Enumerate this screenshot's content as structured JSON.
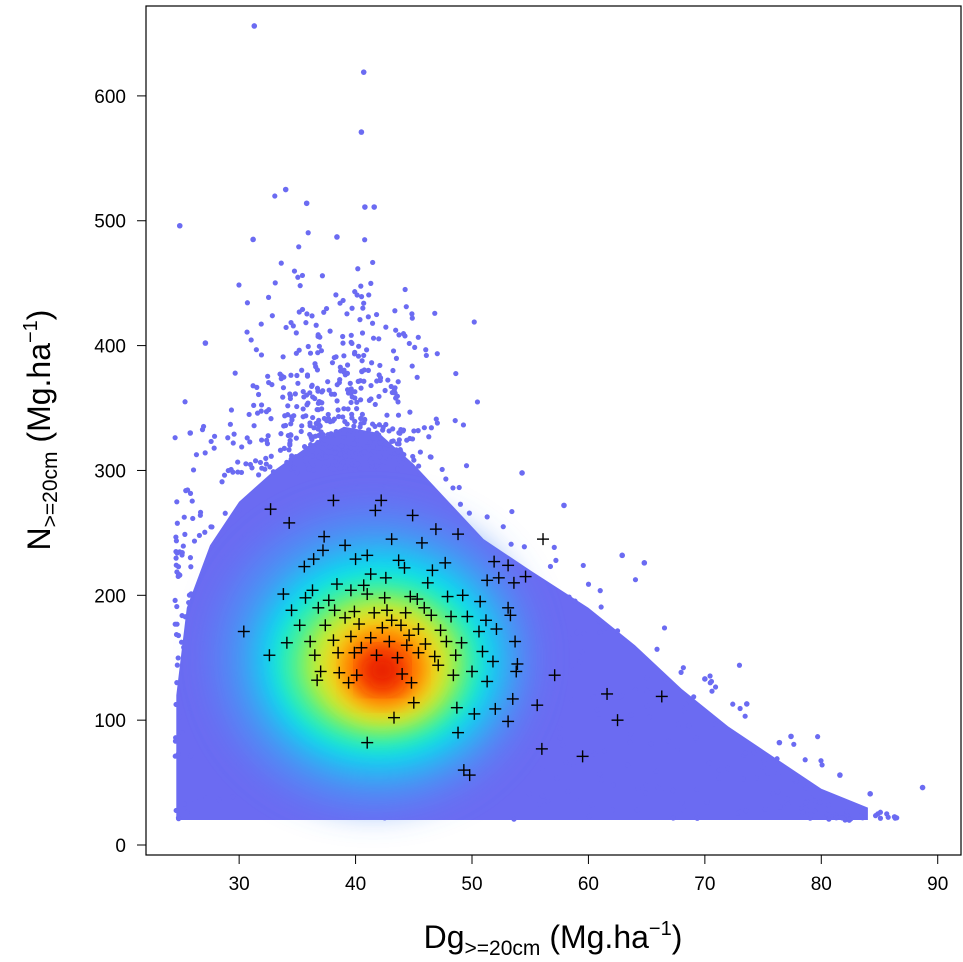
{
  "chart_data": {
    "type": "scatter",
    "title": "",
    "xlabel": {
      "main": "Dg",
      "subscript": ">=20cm",
      "unit_open": " (Mg.ha",
      "unit_exp": "−1",
      "unit_close": ")"
    },
    "ylabel": {
      "main": "N",
      "subscript": ">=20cm",
      "unit_open": " (Mg.ha",
      "unit_exp": "−1",
      "unit_close": ")"
    },
    "xlim": [
      22,
      92
    ],
    "ylim": [
      -8,
      672
    ],
    "x_ticks": [
      30,
      40,
      50,
      60,
      70,
      80,
      90
    ],
    "y_ticks": [
      0,
      100,
      200,
      300,
      400,
      500,
      600
    ],
    "grid": false,
    "legend": "none",
    "density_colors": [
      "#6b6bf2",
      "#4f8cf5",
      "#00e6f0",
      "#3cf0a0",
      "#a8f040",
      "#f0e020",
      "#ffa000",
      "#ff5a00",
      "#e81e00"
    ],
    "density_points": {
      "description_count": "simulated population, density-coloured",
      "highlight_outliers": [
        {
          "x": 31.3,
          "y": 656
        },
        {
          "x": 40.7,
          "y": 619
        },
        {
          "x": 40.5,
          "y": 571
        },
        {
          "x": 24.9,
          "y": 496
        },
        {
          "x": 31.2,
          "y": 485
        },
        {
          "x": 34.0,
          "y": 525
        },
        {
          "x": 35.8,
          "y": 514
        },
        {
          "x": 40.8,
          "y": 511
        },
        {
          "x": 41.6,
          "y": 511
        },
        {
          "x": 38.4,
          "y": 487
        },
        {
          "x": 27.1,
          "y": 402
        },
        {
          "x": 25.8,
          "y": 330
        },
        {
          "x": 88.7,
          "y": 46
        },
        {
          "x": 84.2,
          "y": 41
        },
        {
          "x": 82.4,
          "y": 20
        },
        {
          "x": 76.4,
          "y": 82
        },
        {
          "x": 77.4,
          "y": 87
        },
        {
          "x": 73.6,
          "y": 113
        },
        {
          "x": 70.0,
          "y": 133
        },
        {
          "x": 57.9,
          "y": 272
        },
        {
          "x": 54.3,
          "y": 298
        },
        {
          "x": 62.9,
          "y": 232
        },
        {
          "x": 64.8,
          "y": 226
        },
        {
          "x": 81.6,
          "y": 56
        }
      ]
    },
    "observed_points": [
      {
        "x": 32.7,
        "y": 269
      },
      {
        "x": 34.3,
        "y": 258
      },
      {
        "x": 38.1,
        "y": 276
      },
      {
        "x": 42.2,
        "y": 276
      },
      {
        "x": 41.7,
        "y": 268
      },
      {
        "x": 44.9,
        "y": 264
      },
      {
        "x": 46.9,
        "y": 253
      },
      {
        "x": 48.8,
        "y": 249
      },
      {
        "x": 56.1,
        "y": 245
      },
      {
        "x": 37.3,
        "y": 247
      },
      {
        "x": 39.1,
        "y": 240
      },
      {
        "x": 43.1,
        "y": 245
      },
      {
        "x": 45.7,
        "y": 242
      },
      {
        "x": 37.2,
        "y": 236
      },
      {
        "x": 41.0,
        "y": 232
      },
      {
        "x": 40.0,
        "y": 229
      },
      {
        "x": 43.7,
        "y": 228
      },
      {
        "x": 47.7,
        "y": 226
      },
      {
        "x": 51.9,
        "y": 227
      },
      {
        "x": 53.1,
        "y": 224
      },
      {
        "x": 35.6,
        "y": 223
      },
      {
        "x": 36.4,
        "y": 229
      },
      {
        "x": 44.2,
        "y": 222
      },
      {
        "x": 46.6,
        "y": 220
      },
      {
        "x": 41.3,
        "y": 217
      },
      {
        "x": 42.6,
        "y": 214
      },
      {
        "x": 52.3,
        "y": 214
      },
      {
        "x": 54.6,
        "y": 215
      },
      {
        "x": 51.3,
        "y": 212
      },
      {
        "x": 53.6,
        "y": 210
      },
      {
        "x": 38.4,
        "y": 209
      },
      {
        "x": 39.6,
        "y": 204
      },
      {
        "x": 36.3,
        "y": 204
      },
      {
        "x": 33.8,
        "y": 201
      },
      {
        "x": 35.7,
        "y": 198
      },
      {
        "x": 41.0,
        "y": 201
      },
      {
        "x": 44.7,
        "y": 199
      },
      {
        "x": 45.3,
        "y": 197
      },
      {
        "x": 47.9,
        "y": 199
      },
      {
        "x": 49.2,
        "y": 200
      },
      {
        "x": 50.7,
        "y": 195
      },
      {
        "x": 53.1,
        "y": 190
      },
      {
        "x": 30.4,
        "y": 171
      },
      {
        "x": 34.5,
        "y": 188
      },
      {
        "x": 36.8,
        "y": 190
      },
      {
        "x": 38.2,
        "y": 188
      },
      {
        "x": 39.9,
        "y": 187
      },
      {
        "x": 41.6,
        "y": 186
      },
      {
        "x": 42.7,
        "y": 188
      },
      {
        "x": 44.3,
        "y": 186
      },
      {
        "x": 46.5,
        "y": 184
      },
      {
        "x": 48.2,
        "y": 183
      },
      {
        "x": 49.6,
        "y": 183
      },
      {
        "x": 51.2,
        "y": 180
      },
      {
        "x": 53.3,
        "y": 184
      },
      {
        "x": 35.2,
        "y": 176
      },
      {
        "x": 37.4,
        "y": 176
      },
      {
        "x": 40.3,
        "y": 177
      },
      {
        "x": 42.3,
        "y": 174
      },
      {
        "x": 43.9,
        "y": 176
      },
      {
        "x": 45.4,
        "y": 173
      },
      {
        "x": 47.3,
        "y": 172
      },
      {
        "x": 50.6,
        "y": 171
      },
      {
        "x": 52.1,
        "y": 173
      },
      {
        "x": 34.1,
        "y": 162
      },
      {
        "x": 36.1,
        "y": 163
      },
      {
        "x": 38.1,
        "y": 164
      },
      {
        "x": 39.6,
        "y": 167
      },
      {
        "x": 41.3,
        "y": 166
      },
      {
        "x": 42.9,
        "y": 163
      },
      {
        "x": 44.4,
        "y": 160
      },
      {
        "x": 46.0,
        "y": 161
      },
      {
        "x": 47.8,
        "y": 163
      },
      {
        "x": 49.1,
        "y": 162
      },
      {
        "x": 53.7,
        "y": 163
      },
      {
        "x": 32.6,
        "y": 152
      },
      {
        "x": 36.5,
        "y": 152
      },
      {
        "x": 38.5,
        "y": 154
      },
      {
        "x": 39.9,
        "y": 154
      },
      {
        "x": 41.8,
        "y": 152
      },
      {
        "x": 43.6,
        "y": 150
      },
      {
        "x": 45.4,
        "y": 154
      },
      {
        "x": 46.8,
        "y": 151
      },
      {
        "x": 48.6,
        "y": 152
      },
      {
        "x": 51.8,
        "y": 147
      },
      {
        "x": 53.9,
        "y": 145
      },
      {
        "x": 37.0,
        "y": 139
      },
      {
        "x": 38.6,
        "y": 138
      },
      {
        "x": 40.1,
        "y": 136
      },
      {
        "x": 44.0,
        "y": 137
      },
      {
        "x": 48.4,
        "y": 136
      },
      {
        "x": 50.0,
        "y": 139
      },
      {
        "x": 53.8,
        "y": 139
      },
      {
        "x": 57.1,
        "y": 136
      },
      {
        "x": 36.7,
        "y": 132
      },
      {
        "x": 39.4,
        "y": 130
      },
      {
        "x": 44.8,
        "y": 130
      },
      {
        "x": 51.3,
        "y": 131
      },
      {
        "x": 61.6,
        "y": 121
      },
      {
        "x": 66.3,
        "y": 119
      },
      {
        "x": 53.5,
        "y": 117
      },
      {
        "x": 45.0,
        "y": 114
      },
      {
        "x": 48.7,
        "y": 110
      },
      {
        "x": 52.0,
        "y": 109
      },
      {
        "x": 55.6,
        "y": 112
      },
      {
        "x": 50.2,
        "y": 105
      },
      {
        "x": 43.3,
        "y": 102
      },
      {
        "x": 53.1,
        "y": 99
      },
      {
        "x": 62.5,
        "y": 100
      },
      {
        "x": 48.8,
        "y": 90
      },
      {
        "x": 41.0,
        "y": 82
      },
      {
        "x": 56.0,
        "y": 77
      },
      {
        "x": 59.5,
        "y": 71
      },
      {
        "x": 49.3,
        "y": 60
      },
      {
        "x": 49.8,
        "y": 56
      },
      {
        "x": 37.7,
        "y": 196
      },
      {
        "x": 40.7,
        "y": 208
      },
      {
        "x": 46.2,
        "y": 210
      },
      {
        "x": 42.5,
        "y": 198
      },
      {
        "x": 44.6,
        "y": 168
      },
      {
        "x": 47.1,
        "y": 144
      },
      {
        "x": 40.5,
        "y": 158
      },
      {
        "x": 43.1,
        "y": 180
      },
      {
        "x": 50.9,
        "y": 155
      },
      {
        "x": 39.1,
        "y": 182
      },
      {
        "x": 45.9,
        "y": 190
      }
    ]
  }
}
